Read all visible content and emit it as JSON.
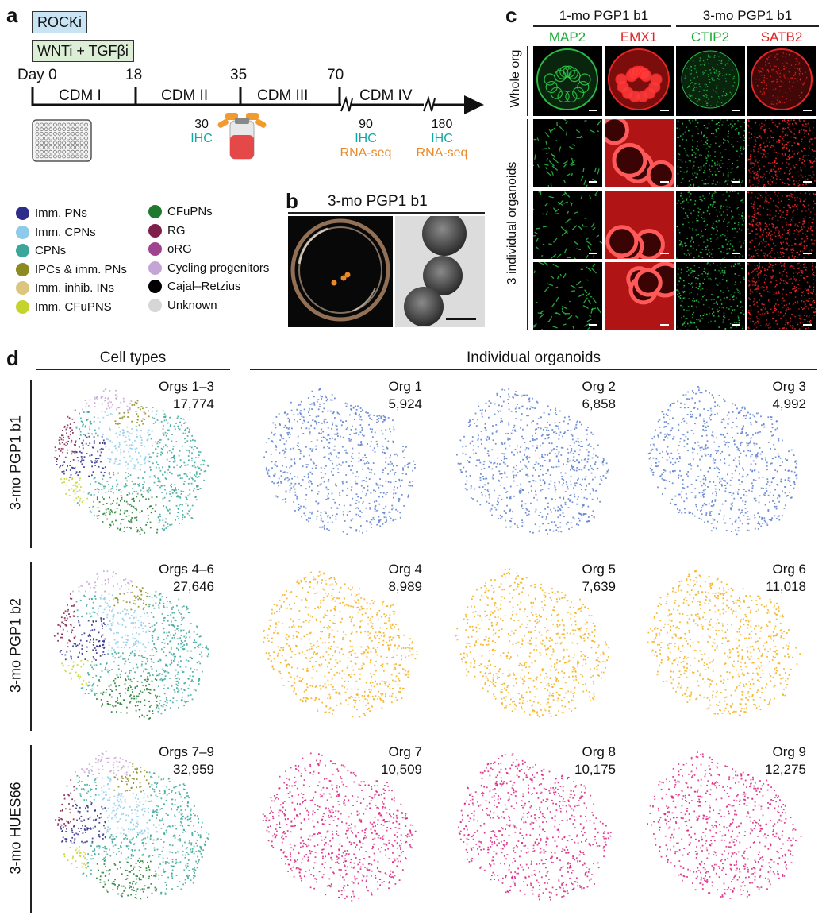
{
  "panels": {
    "a": "a",
    "b": "b",
    "c": "c",
    "d": "d"
  },
  "panel_a": {
    "rocki": "ROCKi",
    "wnti": "WNTi + TGFβi",
    "timeline": {
      "day_labels": [
        "Day 0",
        "18",
        "35",
        "70"
      ],
      "stages": [
        "CDM I",
        "CDM II",
        "CDM III",
        "CDM IV"
      ],
      "timepoints": [
        {
          "day": "30",
          "assays": [
            "IHC"
          ]
        },
        {
          "day": "90",
          "assays": [
            "IHC",
            "RNA-seq"
          ]
        },
        {
          "day": "180",
          "assays": [
            "IHC",
            "RNA-seq"
          ]
        }
      ]
    },
    "colors": {
      "ihc": "#12a8a8",
      "rnaseq": "#e8892a",
      "rocki_bg": "#c9e4f2",
      "wnti_bg": "#dcefd6"
    }
  },
  "legend": {
    "col1": [
      {
        "label": "Imm. PNs",
        "color": "#2e2c8a"
      },
      {
        "label": "Imm. CPNs",
        "color": "#8ecbea"
      },
      {
        "label": "CPNs",
        "color": "#3aa79a"
      },
      {
        "label": "IPCs & imm. PNs",
        "color": "#8b8b21"
      },
      {
        "label": "Imm. inhib. INs",
        "color": "#dcc57e"
      },
      {
        "label": "Imm. CFuPNS",
        "color": "#c4d42d"
      }
    ],
    "col2": [
      {
        "label": "CFuPNs",
        "color": "#1f7a2f"
      },
      {
        "label": "RG",
        "color": "#7e1e4a"
      },
      {
        "label": "oRG",
        "color": "#a0438f"
      },
      {
        "label": "Cycling progenitors",
        "color": "#c5a5d6"
      },
      {
        "label": "Cajal–Retzius",
        "color": "#000000"
      },
      {
        "label": "Unknown",
        "color": "#d6d6d6"
      }
    ]
  },
  "panel_b": {
    "title": "3-mo PGP1 b1"
  },
  "panel_c": {
    "groups": [
      "1-mo PGP1 b1",
      "3-mo PGP1 b1"
    ],
    "markers": [
      {
        "label": "MAP2",
        "color": "#1faa3a"
      },
      {
        "label": "EMX1",
        "color": "#e02424"
      },
      {
        "label": "CTIP2",
        "color": "#1faa3a"
      },
      {
        "label": "SATB2",
        "color": "#e02424"
      }
    ],
    "row_labels": {
      "whole": "Whole org",
      "individual": "3 individual organoids"
    }
  },
  "panel_d": {
    "col_headers": {
      "cell_types": "Cell types",
      "individual": "Individual organoids"
    },
    "rows": [
      {
        "label": "3-mo PGP1 b1",
        "color": "#5a7fce",
        "combined": {
          "name": "Orgs 1–3",
          "count": "17,774"
        },
        "orgs": [
          {
            "name": "Org 1",
            "count": "5,924"
          },
          {
            "name": "Org 2",
            "count": "6,858"
          },
          {
            "name": "Org 3",
            "count": "4,992"
          }
        ]
      },
      {
        "label": "3-mo PGP1 b2",
        "color": "#f5ae16",
        "combined": {
          "name": "Orgs 4–6",
          "count": "27,646"
        },
        "orgs": [
          {
            "name": "Org 4",
            "count": "8,989"
          },
          {
            "name": "Org 5",
            "count": "7,639"
          },
          {
            "name": "Org 6",
            "count": "11,018"
          }
        ]
      },
      {
        "label": "3-mo HUES66",
        "color": "#d9237f",
        "combined": {
          "name": "Orgs 7–9",
          "count": "32,959"
        },
        "orgs": [
          {
            "name": "Org 7",
            "count": "10,509"
          },
          {
            "name": "Org 8",
            "count": "10,175"
          },
          {
            "name": "Org 9",
            "count": "12,275"
          }
        ]
      }
    ]
  }
}
